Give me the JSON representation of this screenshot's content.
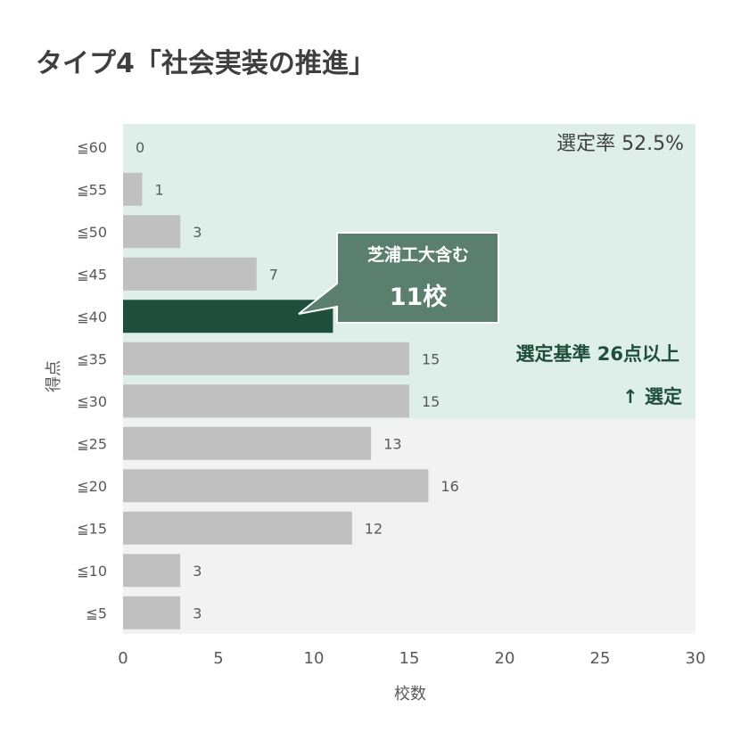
{
  "title": "タイプ4「社会実装の推進」",
  "chart_data": {
    "type": "bar",
    "orientation": "horizontal",
    "categories": [
      "≦60",
      "≦55",
      "≦50",
      "≦45",
      "≦40",
      "≦35",
      "≦30",
      "≦25",
      "≦20",
      "≦15",
      "≦10",
      "≦5"
    ],
    "values": [
      0,
      1,
      3,
      7,
      11,
      15,
      15,
      13,
      16,
      12,
      3,
      3
    ],
    "highlight_category": "≦40",
    "xlabel": "校数",
    "ylabel": "得点",
    "xlim": [
      0,
      30
    ],
    "xticks": [
      "0",
      "5",
      "10",
      "15",
      "20",
      "25",
      "30"
    ],
    "colors": {
      "bar": "#c0c0c0",
      "highlight": "#1f4e3d",
      "selected_region": "#deefe9",
      "unselected_region": "#f2f2f2",
      "callout": "#5b7f6e"
    },
    "annotations": {
      "selection_rate": "選定率 52.5%",
      "callout_line1": "芝浦工大含む",
      "callout_line2": "11校",
      "criteria_line1": "選定基準 26点以上",
      "criteria_line2": "↑ 選定"
    }
  }
}
